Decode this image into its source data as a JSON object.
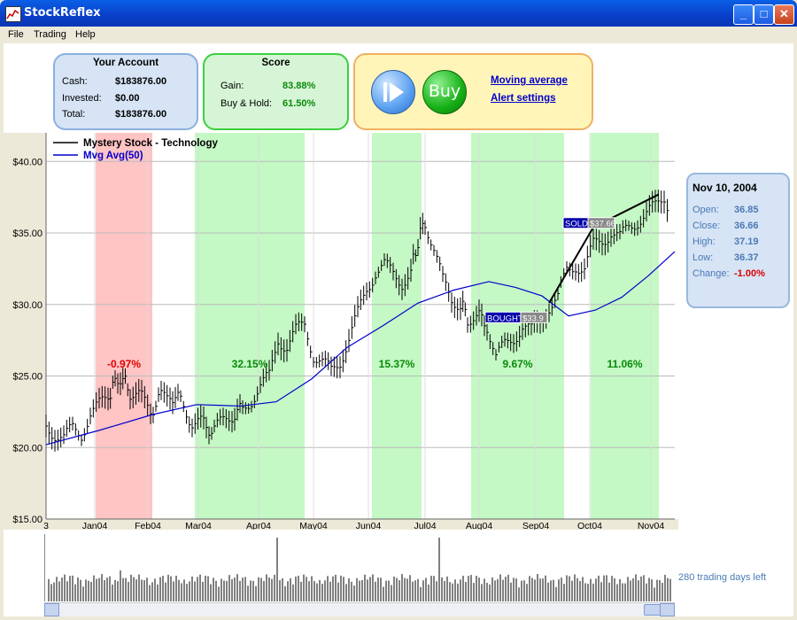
{
  "app": {
    "title": "StockReflex",
    "minimize": "_",
    "maximize": "□",
    "close": "✕"
  },
  "menu": [
    "File",
    "Trading",
    "Help"
  ],
  "account": {
    "title": "Your Account",
    "rows": [
      {
        "label": "Cash:",
        "value": "$183876.00"
      },
      {
        "label": "Invested:",
        "value": "$0.00"
      },
      {
        "label": "Total:",
        "value": "$183876.00"
      }
    ]
  },
  "score": {
    "title": "Score",
    "rows": [
      {
        "label": "Gain:",
        "value": "83.88%"
      },
      {
        "label": "Buy & Hold:",
        "value": "61.50%"
      }
    ]
  },
  "controls": {
    "buy_label": "Buy",
    "link1": "Moving average",
    "link2": "Alert settings"
  },
  "info": {
    "date": "Nov 10, 2004",
    "rows": [
      {
        "label": "Open:",
        "value": "36.85"
      },
      {
        "label": "Close:",
        "value": "36.66"
      },
      {
        "label": "High:",
        "value": "37.19"
      },
      {
        "label": "Low:",
        "value": "36.37"
      },
      {
        "label": "Change:",
        "value": "-1.00%"
      }
    ],
    "change_color": "#e00000"
  },
  "status": {
    "days_left": "280 trading days left"
  },
  "chart_data": {
    "type": "line",
    "legend": [
      {
        "name": "Mystery Stock - Technology",
        "color": "#000000"
      },
      {
        "name": "Mvg Avg(50)",
        "color": "#0000cc"
      }
    ],
    "legend_position": "top-left",
    "ylim": [
      15,
      42
    ],
    "yticks": [
      "$15.00",
      "$20.00",
      "$25.00",
      "$30.00",
      "$35.00",
      "$40.00"
    ],
    "ytick_values": [
      15,
      20,
      25,
      30,
      35,
      40
    ],
    "grid": true,
    "xticks": [
      "3",
      "Jan04",
      "Feb04",
      "Mar04",
      "Apr04",
      "May04",
      "Jun04",
      "Jul04",
      "Aug04",
      "Sep04",
      "Oct04",
      "Nov04"
    ],
    "price": [
      [
        0,
        21.5
      ],
      [
        10,
        21.0
      ],
      [
        20,
        20.6
      ],
      [
        30,
        21.3
      ],
      [
        40,
        21.0
      ],
      [
        50,
        22.3
      ],
      [
        60,
        22.9
      ],
      [
        70,
        23.6
      ],
      [
        78,
        24.5
      ],
      [
        84,
        25.0
      ],
      [
        95,
        23.9
      ],
      [
        108,
        23.4
      ],
      [
        118,
        22.6
      ],
      [
        130,
        23.5
      ],
      [
        140,
        23.8
      ],
      [
        152,
        23.2
      ],
      [
        165,
        21.8
      ],
      [
        178,
        21.6
      ],
      [
        190,
        21.2
      ],
      [
        200,
        21.8
      ],
      [
        210,
        22.3
      ],
      [
        222,
        22.6
      ],
      [
        232,
        23.4
      ],
      [
        242,
        24.3
      ],
      [
        252,
        24.9
      ],
      [
        262,
        27.6
      ],
      [
        272,
        27.1
      ],
      [
        282,
        28.1
      ],
      [
        292,
        28.6
      ],
      [
        302,
        26.5
      ],
      [
        312,
        25.9
      ],
      [
        322,
        25.3
      ],
      [
        332,
        26.1
      ],
      [
        342,
        27.6
      ],
      [
        352,
        29.3
      ],
      [
        362,
        31.1
      ],
      [
        372,
        32.3
      ],
      [
        382,
        32.7
      ],
      [
        392,
        32.1
      ],
      [
        402,
        31.6
      ],
      [
        412,
        32.3
      ],
      [
        420,
        34.4
      ],
      [
        428,
        35.9
      ],
      [
        438,
        33.8
      ],
      [
        448,
        31.6
      ],
      [
        458,
        30.4
      ],
      [
        468,
        30.1
      ],
      [
        476,
        29.1
      ],
      [
        486,
        29.2
      ],
      [
        498,
        28.6
      ],
      [
        508,
        26.3
      ],
      [
        518,
        27.1
      ],
      [
        528,
        27.7
      ],
      [
        538,
        28.5
      ],
      [
        548,
        28.1
      ],
      [
        558,
        28.8
      ],
      [
        568,
        29.9
      ],
      [
        578,
        30.4
      ],
      [
        588,
        32.3
      ],
      [
        598,
        32.8
      ],
      [
        608,
        32.5
      ],
      [
        618,
        34.1
      ],
      [
        628,
        34.5
      ],
      [
        638,
        35.1
      ],
      [
        648,
        34.6
      ],
      [
        658,
        35.4
      ],
      [
        668,
        35.9
      ],
      [
        678,
        36.3
      ],
      [
        688,
        36.8
      ],
      [
        698,
        37.6
      ],
      [
        705,
        36.6
      ]
    ],
    "mvg_avg": [
      [
        0,
        20.2
      ],
      [
        60,
        21.2
      ],
      [
        120,
        22.3
      ],
      [
        170,
        23.0
      ],
      [
        220,
        22.9
      ],
      [
        260,
        23.2
      ],
      [
        300,
        24.8
      ],
      [
        340,
        27.0
      ],
      [
        380,
        28.5
      ],
      [
        420,
        30.1
      ],
      [
        460,
        31.0
      ],
      [
        500,
        31.6
      ],
      [
        530,
        31.2
      ],
      [
        560,
        30.6
      ],
      [
        590,
        29.2
      ],
      [
        620,
        29.6
      ],
      [
        650,
        30.5
      ],
      [
        680,
        32.0
      ],
      [
        710,
        33.7
      ]
    ],
    "periods": [
      {
        "label": "-0.97%",
        "result": "loss",
        "color": "#ffc4c4",
        "x0": 56,
        "x1": 120
      },
      {
        "label": "32.15%",
        "result": "gain",
        "color": "#c4f8c4",
        "x0": 168,
        "x1": 292
      },
      {
        "label": "15.37%",
        "result": "gain",
        "color": "#c4f8c4",
        "x0": 368,
        "x1": 424
      },
      {
        "label": "9.67%",
        "result": "gain",
        "color": "#c4f8c4",
        "x0": 480,
        "x1": 585
      },
      {
        "label": "11.06%",
        "result": "gain",
        "color": "#c4f8c4",
        "x0": 615,
        "x1": 692
      }
    ],
    "markers": [
      {
        "label": "BOUGHT",
        "price": "$33.9",
        "value": 29.1
      },
      {
        "label": "SOLD",
        "price": "$37.66",
        "value": 35.7
      }
    ],
    "trade_line": [
      [
        568,
        30.1
      ],
      [
        618,
        35.4
      ],
      [
        692,
        37.7
      ]
    ]
  }
}
